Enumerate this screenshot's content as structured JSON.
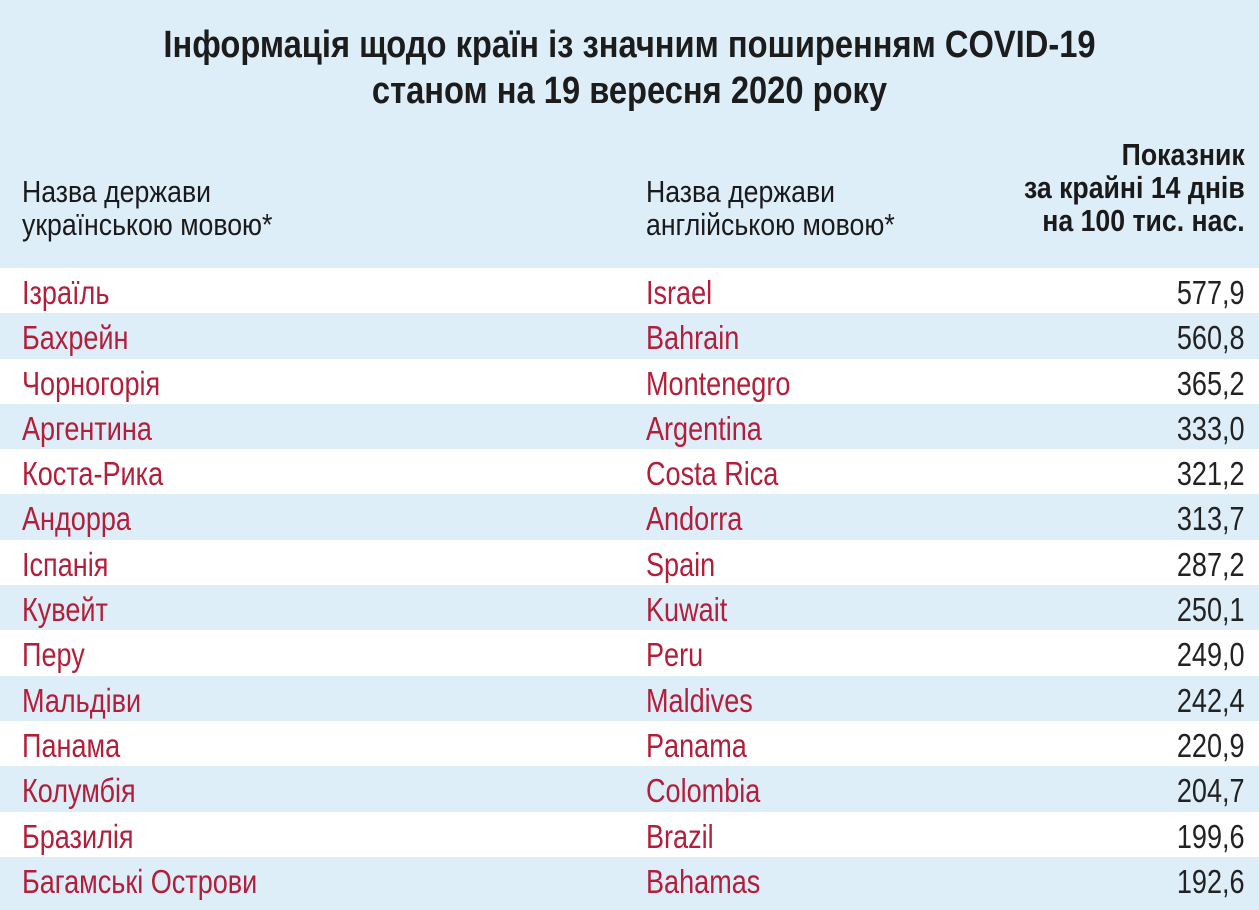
{
  "title": {
    "line1": "Інформація щодо країн із значним поширенням COVID-19",
    "line2": "станом на 19 вересня 2020 року"
  },
  "header": {
    "col_ua_line1": "Назва держави",
    "col_ua_line2": "українською мовою*",
    "col_en_line1": "Назва держави",
    "col_en_line2": "англійською мовою*",
    "col_value_line1": "Показник",
    "col_value_line2": "за крайні 14 днів",
    "col_value_line3": "на 100 тис. нас."
  },
  "rows": [
    {
      "ua": "Ізраїль",
      "en": "Israel",
      "value": "577,9"
    },
    {
      "ua": "Бахрейн",
      "en": "Bahrain",
      "value": "560,8"
    },
    {
      "ua": "Чорногорія",
      "en": "Montenegro",
      "value": "365,2"
    },
    {
      "ua": "Аргентина",
      "en": "Argentina",
      "value": "333,0"
    },
    {
      "ua": "Коста-Рика",
      "en": "Costa Rica",
      "value": "321,2"
    },
    {
      "ua": "Андорра",
      "en": "Andorra",
      "value": "313,7"
    },
    {
      "ua": "Іспанія",
      "en": "Spain",
      "value": "287,2"
    },
    {
      "ua": "Кувейт",
      "en": "Kuwait",
      "value": "250,1"
    },
    {
      "ua": "Перу",
      "en": "Peru",
      "value": "249,0"
    },
    {
      "ua": "Мальдіви",
      "en": "Maldives",
      "value": "242,4"
    },
    {
      "ua": "Панама",
      "en": "Panama",
      "value": "220,9"
    },
    {
      "ua": "Колумбія",
      "en": "Colombia",
      "value": "204,7"
    },
    {
      "ua": "Бразилія",
      "en": "Brazil",
      "value": "199,6"
    },
    {
      "ua": "Багамські Острови",
      "en": "Bahamas",
      "value": "192,6"
    }
  ],
  "colors": {
    "background": "#ddeef9",
    "row_alt": "#ffffff",
    "country_text": "#b31f3a",
    "header_text": "#1a1a1a"
  }
}
